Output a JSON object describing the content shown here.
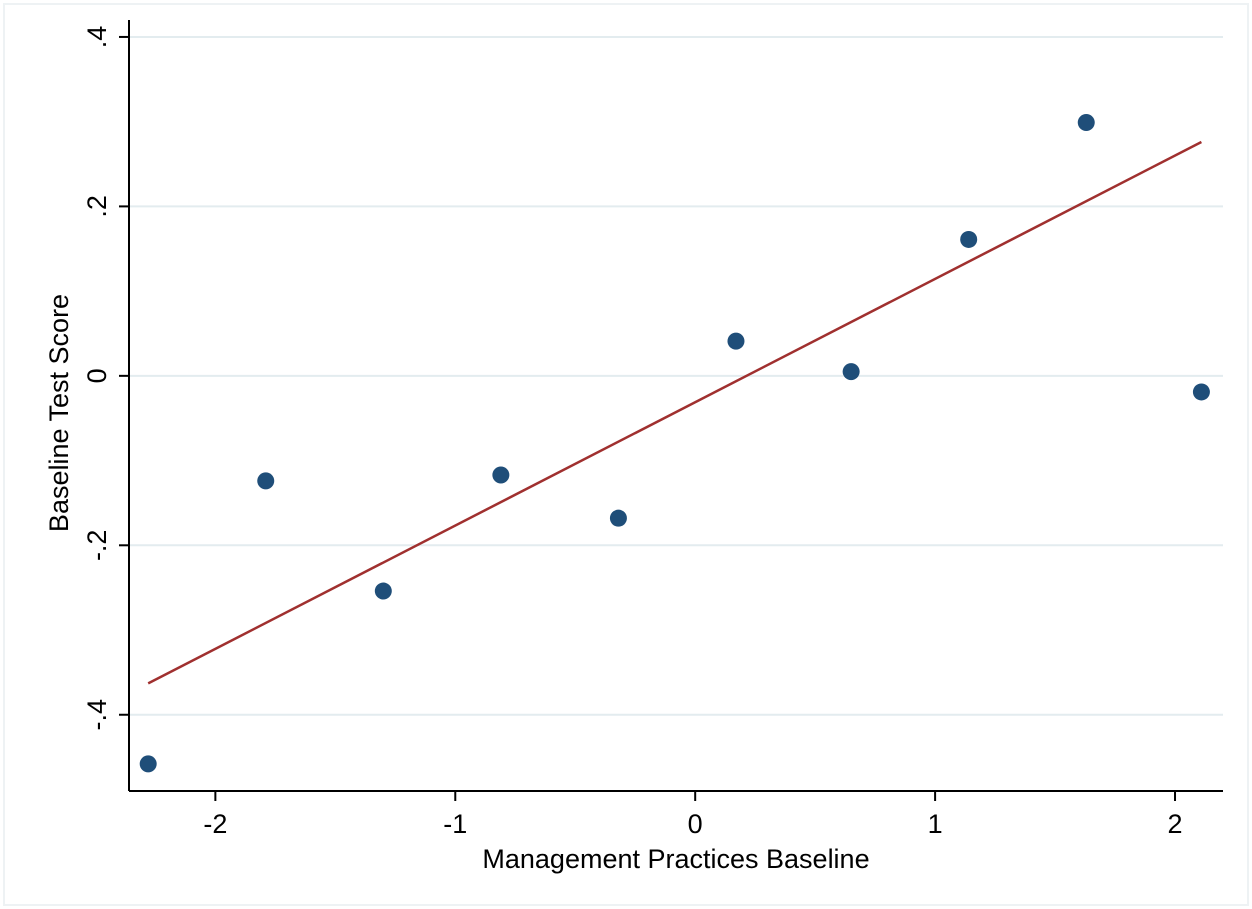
{
  "chart_data": {
    "type": "scatter",
    "title": "",
    "xlabel": "Management Practices Baseline",
    "ylabel": "Baseline Test Score",
    "xlim": [
      -2.36,
      2.2
    ],
    "ylim": [
      -0.49,
      0.42
    ],
    "xticks": [
      {
        "value": -2,
        "label": "-2"
      },
      {
        "value": -1,
        "label": "-1"
      },
      {
        "value": 0,
        "label": "0"
      },
      {
        "value": 1,
        "label": "1"
      },
      {
        "value": 2,
        "label": "2"
      }
    ],
    "yticks": [
      {
        "value": -0.4,
        "label": "-.4"
      },
      {
        "value": -0.2,
        "label": "-.2"
      },
      {
        "value": 0,
        "label": "0"
      },
      {
        "value": 0.2,
        "label": ".2"
      },
      {
        "value": 0.4,
        "label": ".4"
      }
    ],
    "grid": {
      "horizontal": true,
      "vertical": false
    },
    "series": [
      {
        "points": [
          {
            "x": -2.28,
            "y": -0.458
          },
          {
            "x": -1.79,
            "y": -0.124
          },
          {
            "x": -1.3,
            "y": -0.254
          },
          {
            "x": -0.81,
            "y": -0.117
          },
          {
            "x": -0.32,
            "y": -0.168
          },
          {
            "x": 0.17,
            "y": 0.041
          },
          {
            "x": 0.65,
            "y": 0.005
          },
          {
            "x": 1.14,
            "y": 0.161
          },
          {
            "x": 1.63,
            "y": 0.299
          },
          {
            "x": 2.11,
            "y": -0.019
          }
        ]
      }
    ],
    "fit_line": {
      "x": [
        -2.28,
        2.11
      ],
      "y": [
        -0.363,
        0.276
      ]
    },
    "colors": {
      "points": "#1f4e79",
      "fit_line": "#a0302f",
      "grid": "#e3ecef",
      "axis": "#000000"
    }
  }
}
